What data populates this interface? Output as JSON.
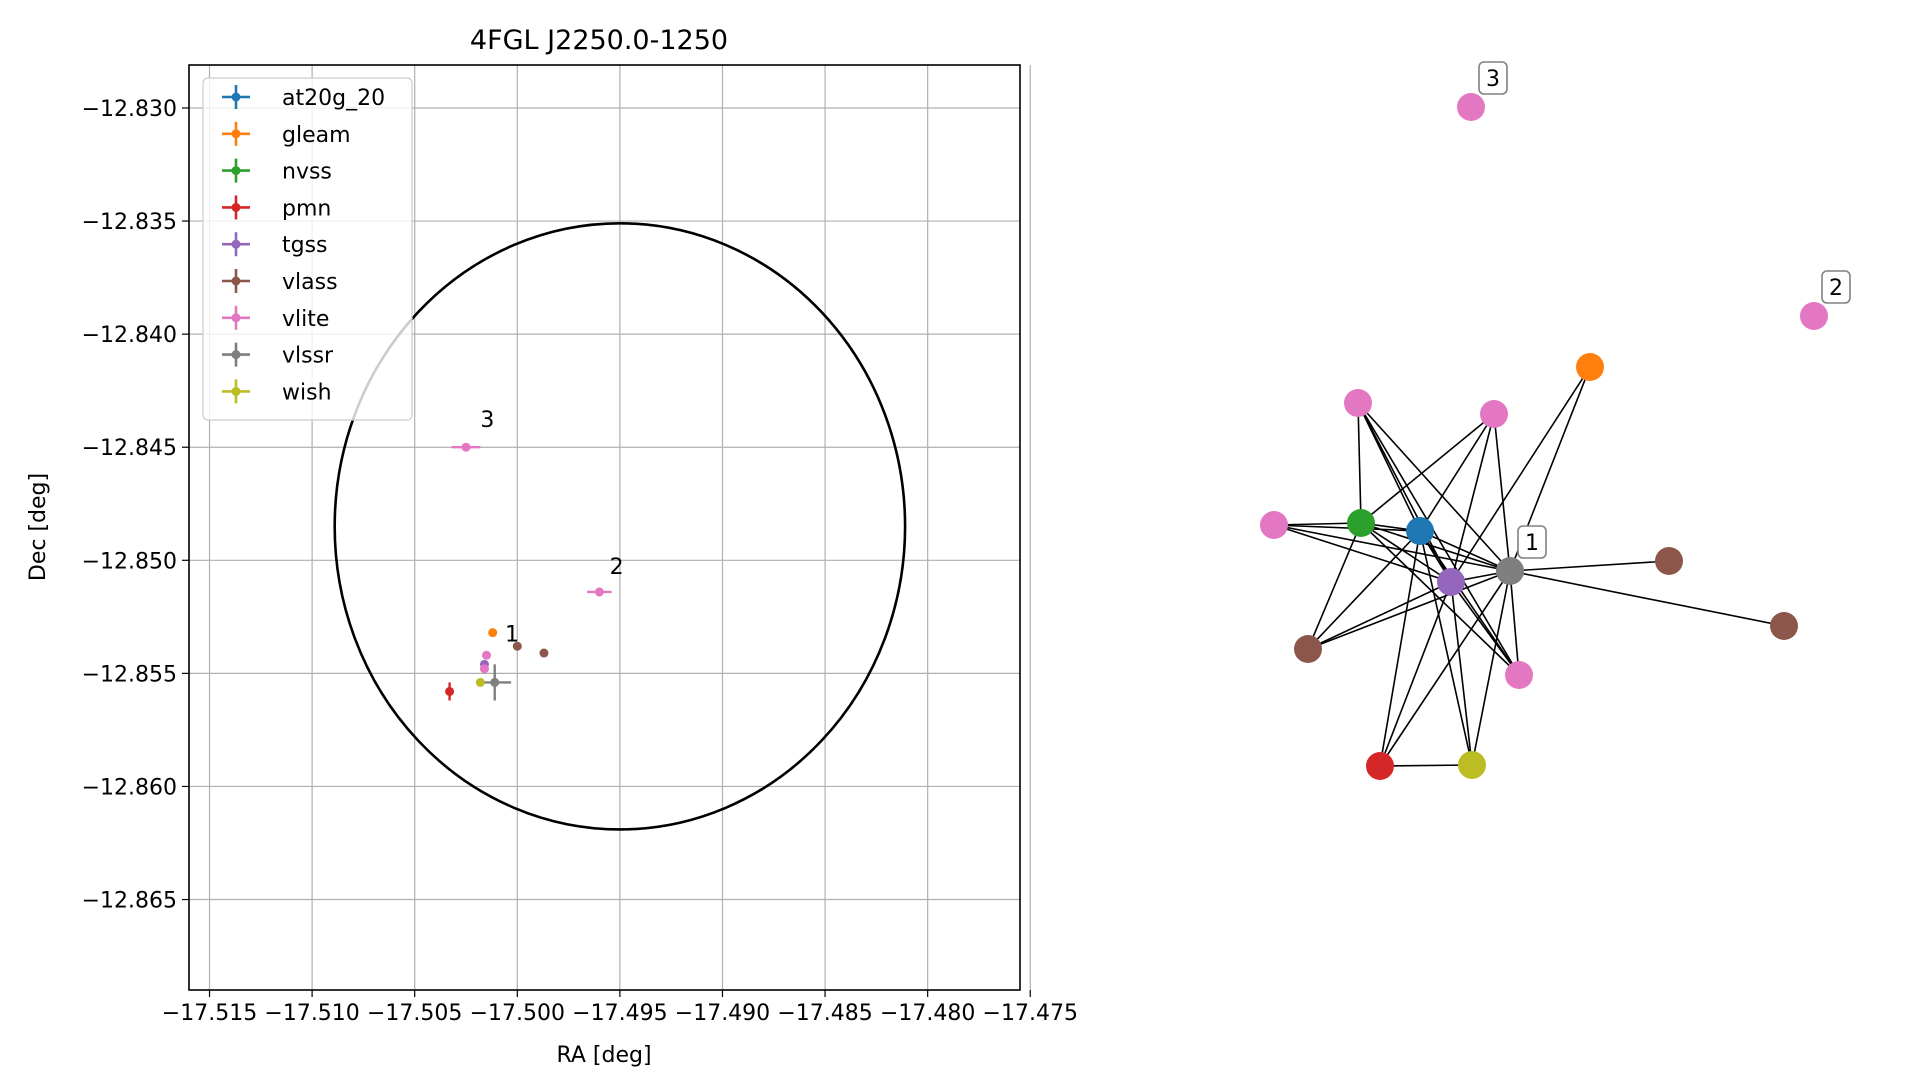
{
  "chart_data": [
    {
      "type": "scatter",
      "title": "4FGL J2250.0-1250",
      "xlabel": "RA [deg]",
      "ylabel": "Dec [deg]",
      "xlim": [
        -17.516,
        -17.4755
      ],
      "ylim": [
        -12.869,
        -12.8281
      ],
      "xticks": [
        -17.515,
        -17.51,
        -17.505,
        -17.5,
        -17.495,
        -17.49,
        -17.485,
        -17.48,
        -17.475
      ],
      "xtick_labels": [
        "−17.515",
        "−17.510",
        "−17.505",
        "−17.500",
        "−17.495",
        "−17.490",
        "−17.485",
        "−17.480",
        "−17.475"
      ],
      "yticks": [
        -12.83,
        -12.835,
        -12.84,
        -12.845,
        -12.85,
        -12.855,
        -12.86,
        -12.865
      ],
      "ytick_labels": [
        "−12.830",
        "−12.835",
        "−12.840",
        "−12.845",
        "−12.850",
        "−12.855",
        "−12.860",
        "−12.865"
      ],
      "grid": true,
      "legend_position": "top-left",
      "ellipse": {
        "center": [
          -17.495,
          -12.8485
        ],
        "half_width_ra": 0.0139,
        "half_height_dec": 0.0134
      },
      "series": [
        {
          "name": "at20g_20",
          "color": "#1f77b4",
          "points": []
        },
        {
          "name": "gleam",
          "color": "#ff7f0e",
          "points": [
            {
              "x": -17.5012,
              "y": -12.8532
            }
          ]
        },
        {
          "name": "nvss",
          "color": "#2ca02c",
          "points": []
        },
        {
          "name": "pmn",
          "color": "#d62728",
          "points": [
            {
              "x": -17.5033,
              "y": -12.8558,
              "xerr": 0.0,
              "yerr": 0.0004
            }
          ]
        },
        {
          "name": "tgss",
          "color": "#9467bd",
          "points": [
            {
              "x": -17.5016,
              "y": -12.8546
            }
          ]
        },
        {
          "name": "vlass",
          "color": "#8c564b",
          "points": [
            {
              "x": -17.5,
              "y": -12.8538
            },
            {
              "x": -17.4987,
              "y": -12.8541
            }
          ]
        },
        {
          "name": "vlite",
          "color": "#e377c2",
          "points": [
            {
              "x": -17.5025,
              "y": -12.845,
              "xerr": 0.0007
            },
            {
              "x": -17.496,
              "y": -12.8514,
              "xerr": 0.0006,
              "yerr": 0.0002
            },
            {
              "x": -17.5015,
              "y": -12.8542
            },
            {
              "x": -17.5016,
              "y": -12.8548
            }
          ]
        },
        {
          "name": "vlssr",
          "color": "#7f7f7f",
          "points": [
            {
              "x": -17.5011,
              "y": -12.8554,
              "xerr": 0.0008,
              "yerr": 0.0008
            }
          ]
        },
        {
          "name": "wish",
          "color": "#bcbd22",
          "points": [
            {
              "x": -17.5018,
              "y": -12.8554
            }
          ]
        }
      ],
      "labels": [
        {
          "text": "3",
          "x": -17.5018,
          "y": -12.8441
        },
        {
          "text": "2",
          "x": -17.4955,
          "y": -12.8506
        },
        {
          "text": "1",
          "x": -17.5006,
          "y": -12.8536
        }
      ]
    },
    {
      "type": "network",
      "nodes": [
        {
          "id": "vlite_3",
          "color": "#e377c2",
          "label": "3"
        },
        {
          "id": "vlite_2",
          "color": "#e377c2",
          "label": "2"
        },
        {
          "id": "vlssr_1",
          "color": "#7f7f7f",
          "label": "1"
        },
        {
          "id": "gleam",
          "color": "#ff7f0e"
        },
        {
          "id": "vlite_a",
          "color": "#e377c2"
        },
        {
          "id": "vlite_b",
          "color": "#e377c2"
        },
        {
          "id": "vlite_c",
          "color": "#e377c2"
        },
        {
          "id": "vlite_d",
          "color": "#e377c2"
        },
        {
          "id": "nvss",
          "color": "#2ca02c"
        },
        {
          "id": "at20g_20",
          "color": "#1f77b4"
        },
        {
          "id": "tgss",
          "color": "#9467bd"
        },
        {
          "id": "vlass_a",
          "color": "#8c564b"
        },
        {
          "id": "vlass_b",
          "color": "#8c564b"
        },
        {
          "id": "vlass_c",
          "color": "#8c564b"
        },
        {
          "id": "pmn",
          "color": "#d62728"
        },
        {
          "id": "wish",
          "color": "#bcbd22"
        }
      ],
      "edges": [
        [
          "vlssr_1",
          "gleam"
        ],
        [
          "vlssr_1",
          "vlite_a"
        ],
        [
          "vlssr_1",
          "vlite_b"
        ],
        [
          "vlssr_1",
          "vlite_c"
        ],
        [
          "vlssr_1",
          "nvss"
        ],
        [
          "vlssr_1",
          "at20g_20"
        ],
        [
          "vlssr_1",
          "tgss"
        ],
        [
          "vlssr_1",
          "vlass_a"
        ],
        [
          "vlssr_1",
          "vlass_b"
        ],
        [
          "vlssr_1",
          "vlass_c"
        ],
        [
          "vlssr_1",
          "vlite_d"
        ],
        [
          "vlssr_1",
          "pmn"
        ],
        [
          "vlssr_1",
          "wish"
        ],
        [
          "tgss",
          "gleam"
        ],
        [
          "tgss",
          "vlite_a"
        ],
        [
          "tgss",
          "vlite_b"
        ],
        [
          "tgss",
          "vlite_c"
        ],
        [
          "tgss",
          "nvss"
        ],
        [
          "tgss",
          "at20g_20"
        ],
        [
          "tgss",
          "vlass_c"
        ],
        [
          "tgss",
          "vlite_d"
        ],
        [
          "tgss",
          "pmn"
        ],
        [
          "tgss",
          "wish"
        ],
        [
          "at20g_20",
          "vlite_a"
        ],
        [
          "at20g_20",
          "vlite_b"
        ],
        [
          "at20g_20",
          "vlite_c"
        ],
        [
          "at20g_20",
          "nvss"
        ],
        [
          "at20g_20",
          "vlass_c"
        ],
        [
          "at20g_20",
          "vlite_d"
        ],
        [
          "at20g_20",
          "pmn"
        ],
        [
          "at20g_20",
          "wish"
        ],
        [
          "nvss",
          "vlite_a"
        ],
        [
          "nvss",
          "vlite_b"
        ],
        [
          "nvss",
          "vlite_c"
        ],
        [
          "nvss",
          "vlass_c"
        ],
        [
          "nvss",
          "vlite_d"
        ],
        [
          "vlite_a",
          "vlite_d"
        ],
        [
          "pmn",
          "wish"
        ]
      ]
    }
  ]
}
